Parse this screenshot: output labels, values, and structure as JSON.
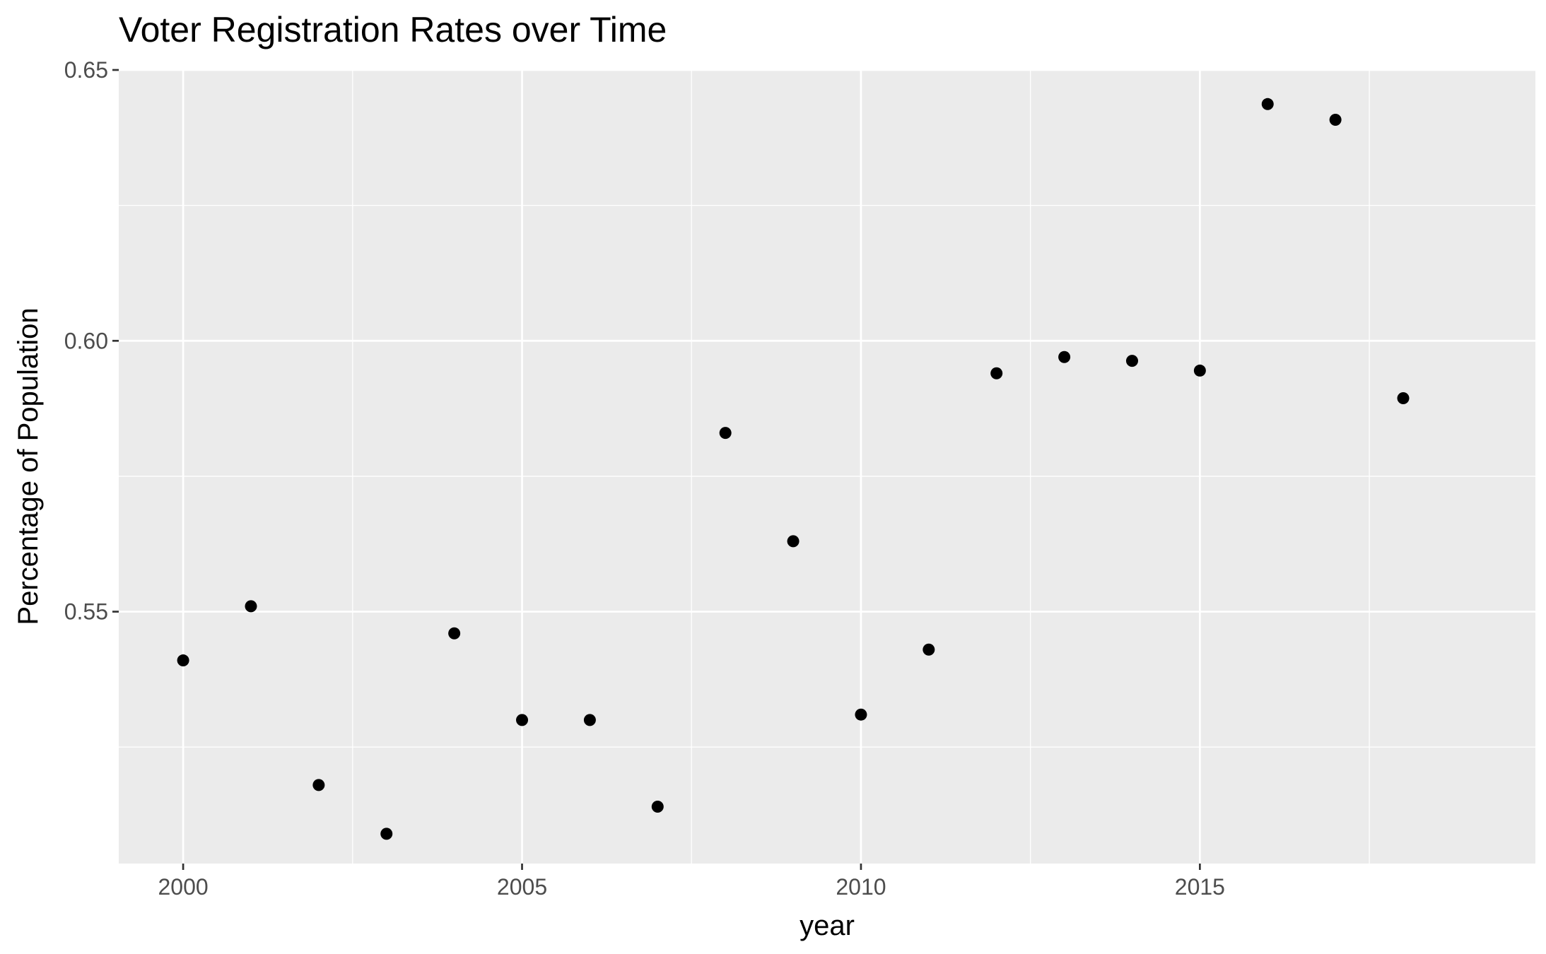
{
  "chart_data": {
    "type": "scatter",
    "title": "Voter Registration Rates over Time",
    "xlabel": "year",
    "ylabel": "Percentage of Population",
    "xlim": [
      1999.05,
      2019.95
    ],
    "ylim": [
      0.5035,
      0.65
    ],
    "x_ticks": [
      2000,
      2005,
      2010,
      2015
    ],
    "x_tick_labels": [
      "2000",
      "2005",
      "2010",
      "2015"
    ],
    "x_minor_ticks": [
      2002.5,
      2007.5,
      2012.5,
      2017.5
    ],
    "y_ticks": [
      0.55,
      0.6,
      0.65
    ],
    "y_tick_labels": [
      "0.55",
      "0.60",
      "0.65"
    ],
    "y_minor_ticks": [
      0.525,
      0.575,
      0.625
    ],
    "grid": true,
    "legend": "none",
    "colors": {
      "panel": "#ebebeb",
      "grid": "#ffffff",
      "point": "#000000",
      "tick": "#333333"
    },
    "points": [
      {
        "x": 2000,
        "y": 0.541
      },
      {
        "x": 2001,
        "y": 0.551
      },
      {
        "x": 2002,
        "y": 0.518
      },
      {
        "x": 2003,
        "y": 0.509
      },
      {
        "x": 2004,
        "y": 0.546
      },
      {
        "x": 2005,
        "y": 0.53
      },
      {
        "x": 2006,
        "y": 0.53
      },
      {
        "x": 2007,
        "y": 0.514
      },
      {
        "x": 2008,
        "y": 0.583
      },
      {
        "x": 2009,
        "y": 0.563
      },
      {
        "x": 2010,
        "y": 0.531
      },
      {
        "x": 2011,
        "y": 0.543
      },
      {
        "x": 2012,
        "y": 0.594
      },
      {
        "x": 2013,
        "y": 0.597
      },
      {
        "x": 2014,
        "y": 0.5963
      },
      {
        "x": 2015,
        "y": 0.5945
      },
      {
        "x": 2016,
        "y": 0.6437
      },
      {
        "x": 2017,
        "y": 0.6408
      },
      {
        "x": 2018,
        "y": 0.5894
      }
    ]
  }
}
